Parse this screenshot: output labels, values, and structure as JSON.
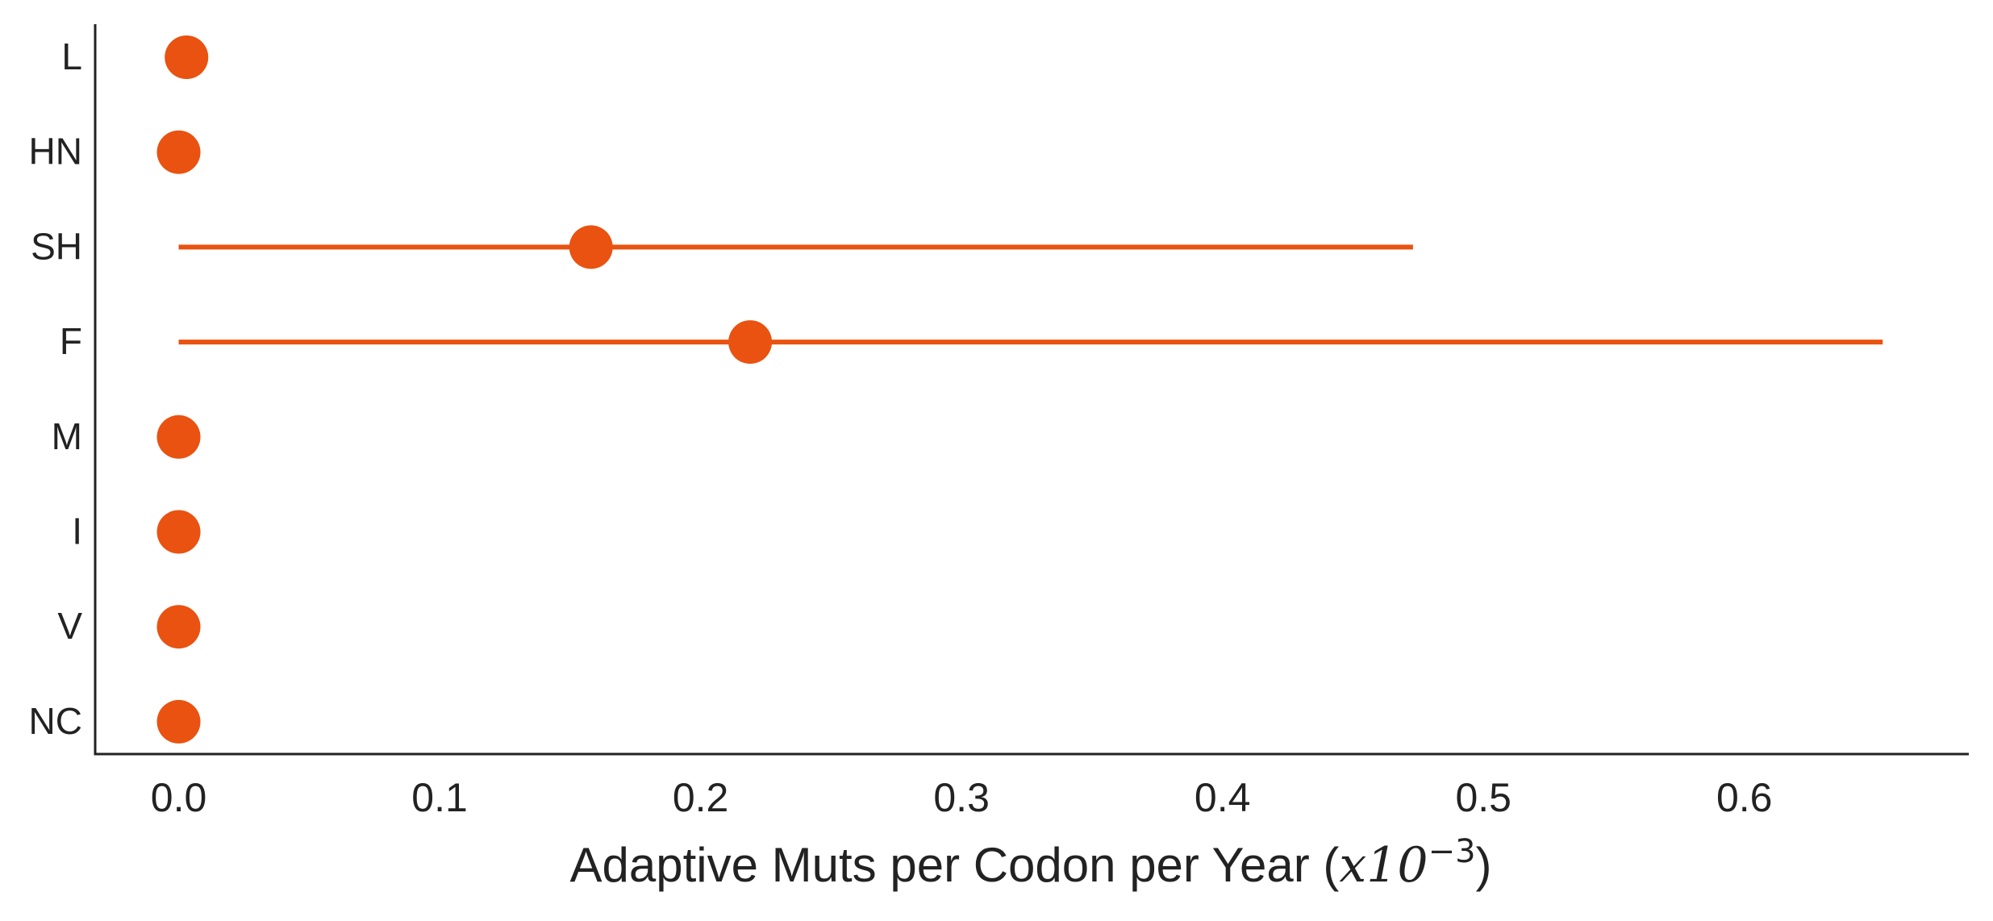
{
  "chart_data": {
    "type": "point-range",
    "orientation": "horizontal",
    "categories": [
      "L",
      "HN",
      "SH",
      "F",
      "M",
      "I",
      "V",
      "NC"
    ],
    "points": [
      {
        "category": "L",
        "value": 0.003,
        "low": null,
        "high": null
      },
      {
        "category": "HN",
        "value": 0.0,
        "low": null,
        "high": null
      },
      {
        "category": "SH",
        "value": 0.158,
        "low": 0.0,
        "high": 0.473
      },
      {
        "category": "F",
        "value": 0.219,
        "low": 0.0,
        "high": 0.653
      },
      {
        "category": "M",
        "value": 0.0,
        "low": null,
        "high": null
      },
      {
        "category": "I",
        "value": 0.0,
        "low": null,
        "high": null
      },
      {
        "category": "V",
        "value": 0.0,
        "low": null,
        "high": null
      },
      {
        "category": "NC",
        "value": 0.0,
        "low": null,
        "high": null
      }
    ],
    "x_ticks": [
      "0.0",
      "0.1",
      "0.2",
      "0.3",
      "0.4",
      "0.5",
      "0.6"
    ],
    "x_tick_values": [
      0.0,
      0.1,
      0.2,
      0.3,
      0.4,
      0.5,
      0.6
    ],
    "xlim": [
      -0.032,
      0.686
    ],
    "xlabel": {
      "text": "Adaptive Muts per Codon per Year (",
      "math_base": "x10",
      "math_exp": "−3",
      "close": ")"
    },
    "ylabel": "",
    "title": "",
    "grid": false,
    "legend": "none",
    "color": "#E95210"
  }
}
